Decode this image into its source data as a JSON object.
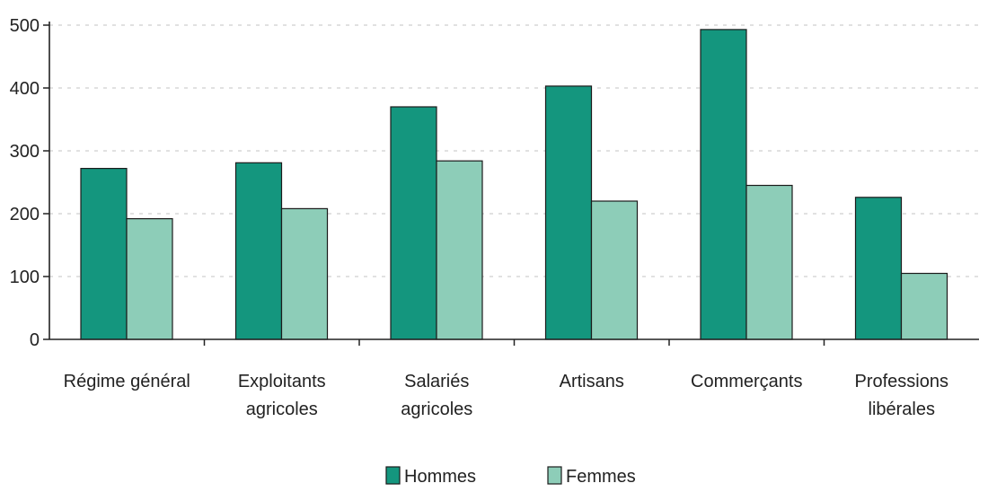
{
  "chart_data": {
    "type": "bar",
    "categories": [
      [
        "Régime général"
      ],
      [
        "Exploitants",
        "agricoles"
      ],
      [
        "Salariés",
        "agricoles"
      ],
      [
        "Artisans"
      ],
      [
        "Commerçants"
      ],
      [
        "Professions",
        "libérales"
      ]
    ],
    "series": [
      {
        "name": "Hommes",
        "color": "#14967e",
        "values": [
          272,
          281,
          370,
          403,
          493,
          226
        ]
      },
      {
        "name": "Femmes",
        "color": "#8dcdb8",
        "values": [
          192,
          208,
          284,
          220,
          245,
          105
        ]
      }
    ],
    "yticks": [
      "0",
      "100",
      "200",
      "300",
      "400",
      "500"
    ],
    "ylim": [
      0,
      500
    ],
    "grid": true,
    "legend_position": "bottom-center"
  }
}
